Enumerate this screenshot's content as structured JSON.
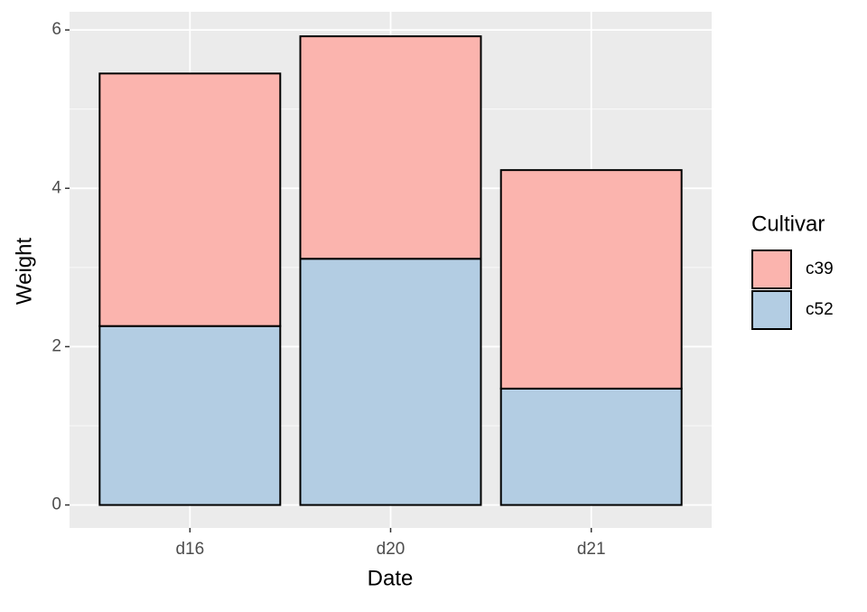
{
  "chart_data": {
    "type": "stacked-bar",
    "x_label": "Date",
    "y_label": "Weight",
    "categories": [
      "d16",
      "d20",
      "d21"
    ],
    "series": [
      {
        "name": "c39",
        "color": "#fbb4ae",
        "values": [
          3.19,
          2.81,
          2.76
        ]
      },
      {
        "name": "c52",
        "color": "#b3cde3",
        "values": [
          2.26,
          3.11,
          1.47
        ]
      }
    ],
    "legend_title": "Cultivar",
    "legend_position": "right",
    "ylim": [
      -0.29,
      6.23
    ],
    "yticks": [
      0,
      2,
      4,
      6
    ],
    "grid": true
  }
}
